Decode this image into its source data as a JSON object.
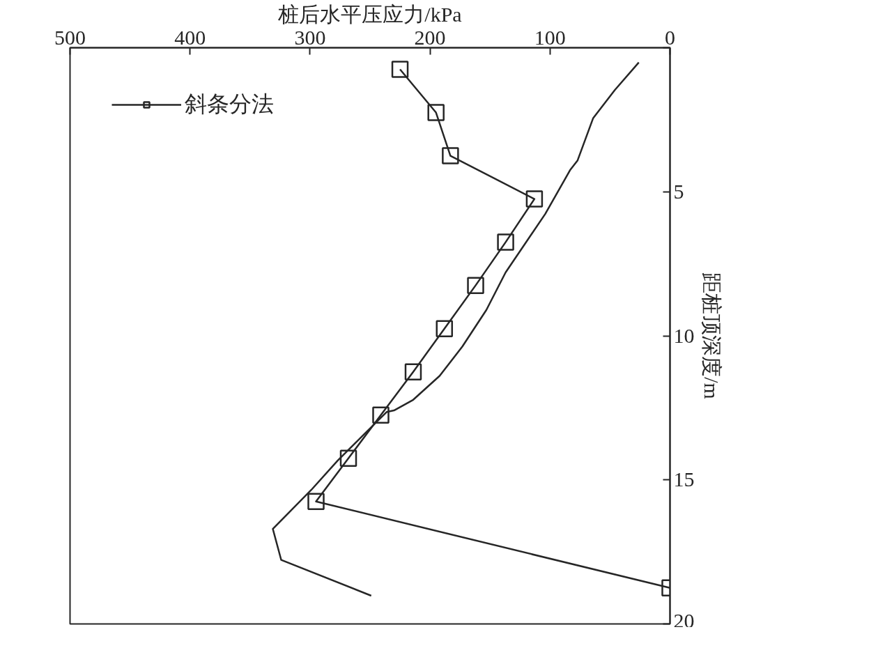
{
  "chart_data": {
    "type": "line",
    "xlabel": "桩后水平压应力/kPa",
    "ylabel": "距桩顶深度/m",
    "xlim": [
      500,
      0
    ],
    "xticks": [
      500,
      400,
      300,
      200,
      100,
      0
    ],
    "ylim": [
      20,
      0
    ],
    "yticks": [
      {
        "value": 0,
        "label": null
      },
      5,
      10,
      15,
      20
    ],
    "grid": false,
    "legend": "top left",
    "series": [
      {
        "name": "斜条分法",
        "color": "#262626",
        "marker": "square",
        "line_style": "solid",
        "x": [
          225,
          195,
          183,
          113,
          137,
          162,
          188,
          214,
          241,
          268,
          295,
          0
        ],
        "values": [
          0.75,
          2.25,
          3.75,
          5.25,
          6.75,
          8.25,
          9.75,
          11.25,
          12.75,
          14.25,
          15.75,
          18.75
        ]
      },
      {
        "color": "#262626",
        "marker": "none",
        "line_style": "solid",
        "x": [
          26,
          46,
          64,
          77,
          83,
          104,
          137,
          153,
          173,
          192,
          214,
          230,
          236,
          255,
          277,
          299,
          331,
          324,
          249
        ],
        "values": [
          0.51,
          1.47,
          2.44,
          3.91,
          4.23,
          5.77,
          7.8,
          9.1,
          10.37,
          11.39,
          12.22,
          12.59,
          12.64,
          13.42,
          14.33,
          15.35,
          16.7,
          17.78,
          19.02
        ]
      }
    ]
  }
}
